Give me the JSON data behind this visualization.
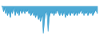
{
  "values": [
    0,
    -1,
    -3,
    -1,
    -4,
    -2,
    -5,
    -3,
    -4,
    -6,
    -2,
    -4,
    -1,
    -3,
    -5,
    -2,
    -4,
    -3,
    -5,
    -2,
    -3,
    -4,
    -2,
    -3,
    -4,
    -2,
    -3,
    -2,
    -4,
    -3,
    -5,
    -4,
    -3,
    -5,
    -4,
    -6,
    -4,
    -5,
    -7,
    -5,
    -8,
    -6,
    -5,
    -14,
    -8,
    -4,
    -3,
    -5,
    -13,
    -6,
    -4,
    -3,
    -4,
    -3,
    -5,
    -3,
    -4,
    -2,
    -3,
    -4,
    -5,
    -3,
    -4,
    -5,
    -3,
    -4,
    -6,
    -4,
    -5,
    -3,
    -4,
    -5,
    -3,
    -4,
    -3,
    -5,
    -4,
    -3,
    -5,
    -3,
    -4,
    -3,
    -2,
    -4,
    -3,
    -5,
    -3,
    -4,
    -3,
    -5,
    -4,
    -3,
    -4,
    -3,
    -5,
    -4,
    -3,
    -2,
    -3,
    -4
  ],
  "line_color": "#3aa0d0",
  "fill_color": "#3aa0d0",
  "bg_color": "#ffffff",
  "alpha": 0.9
}
